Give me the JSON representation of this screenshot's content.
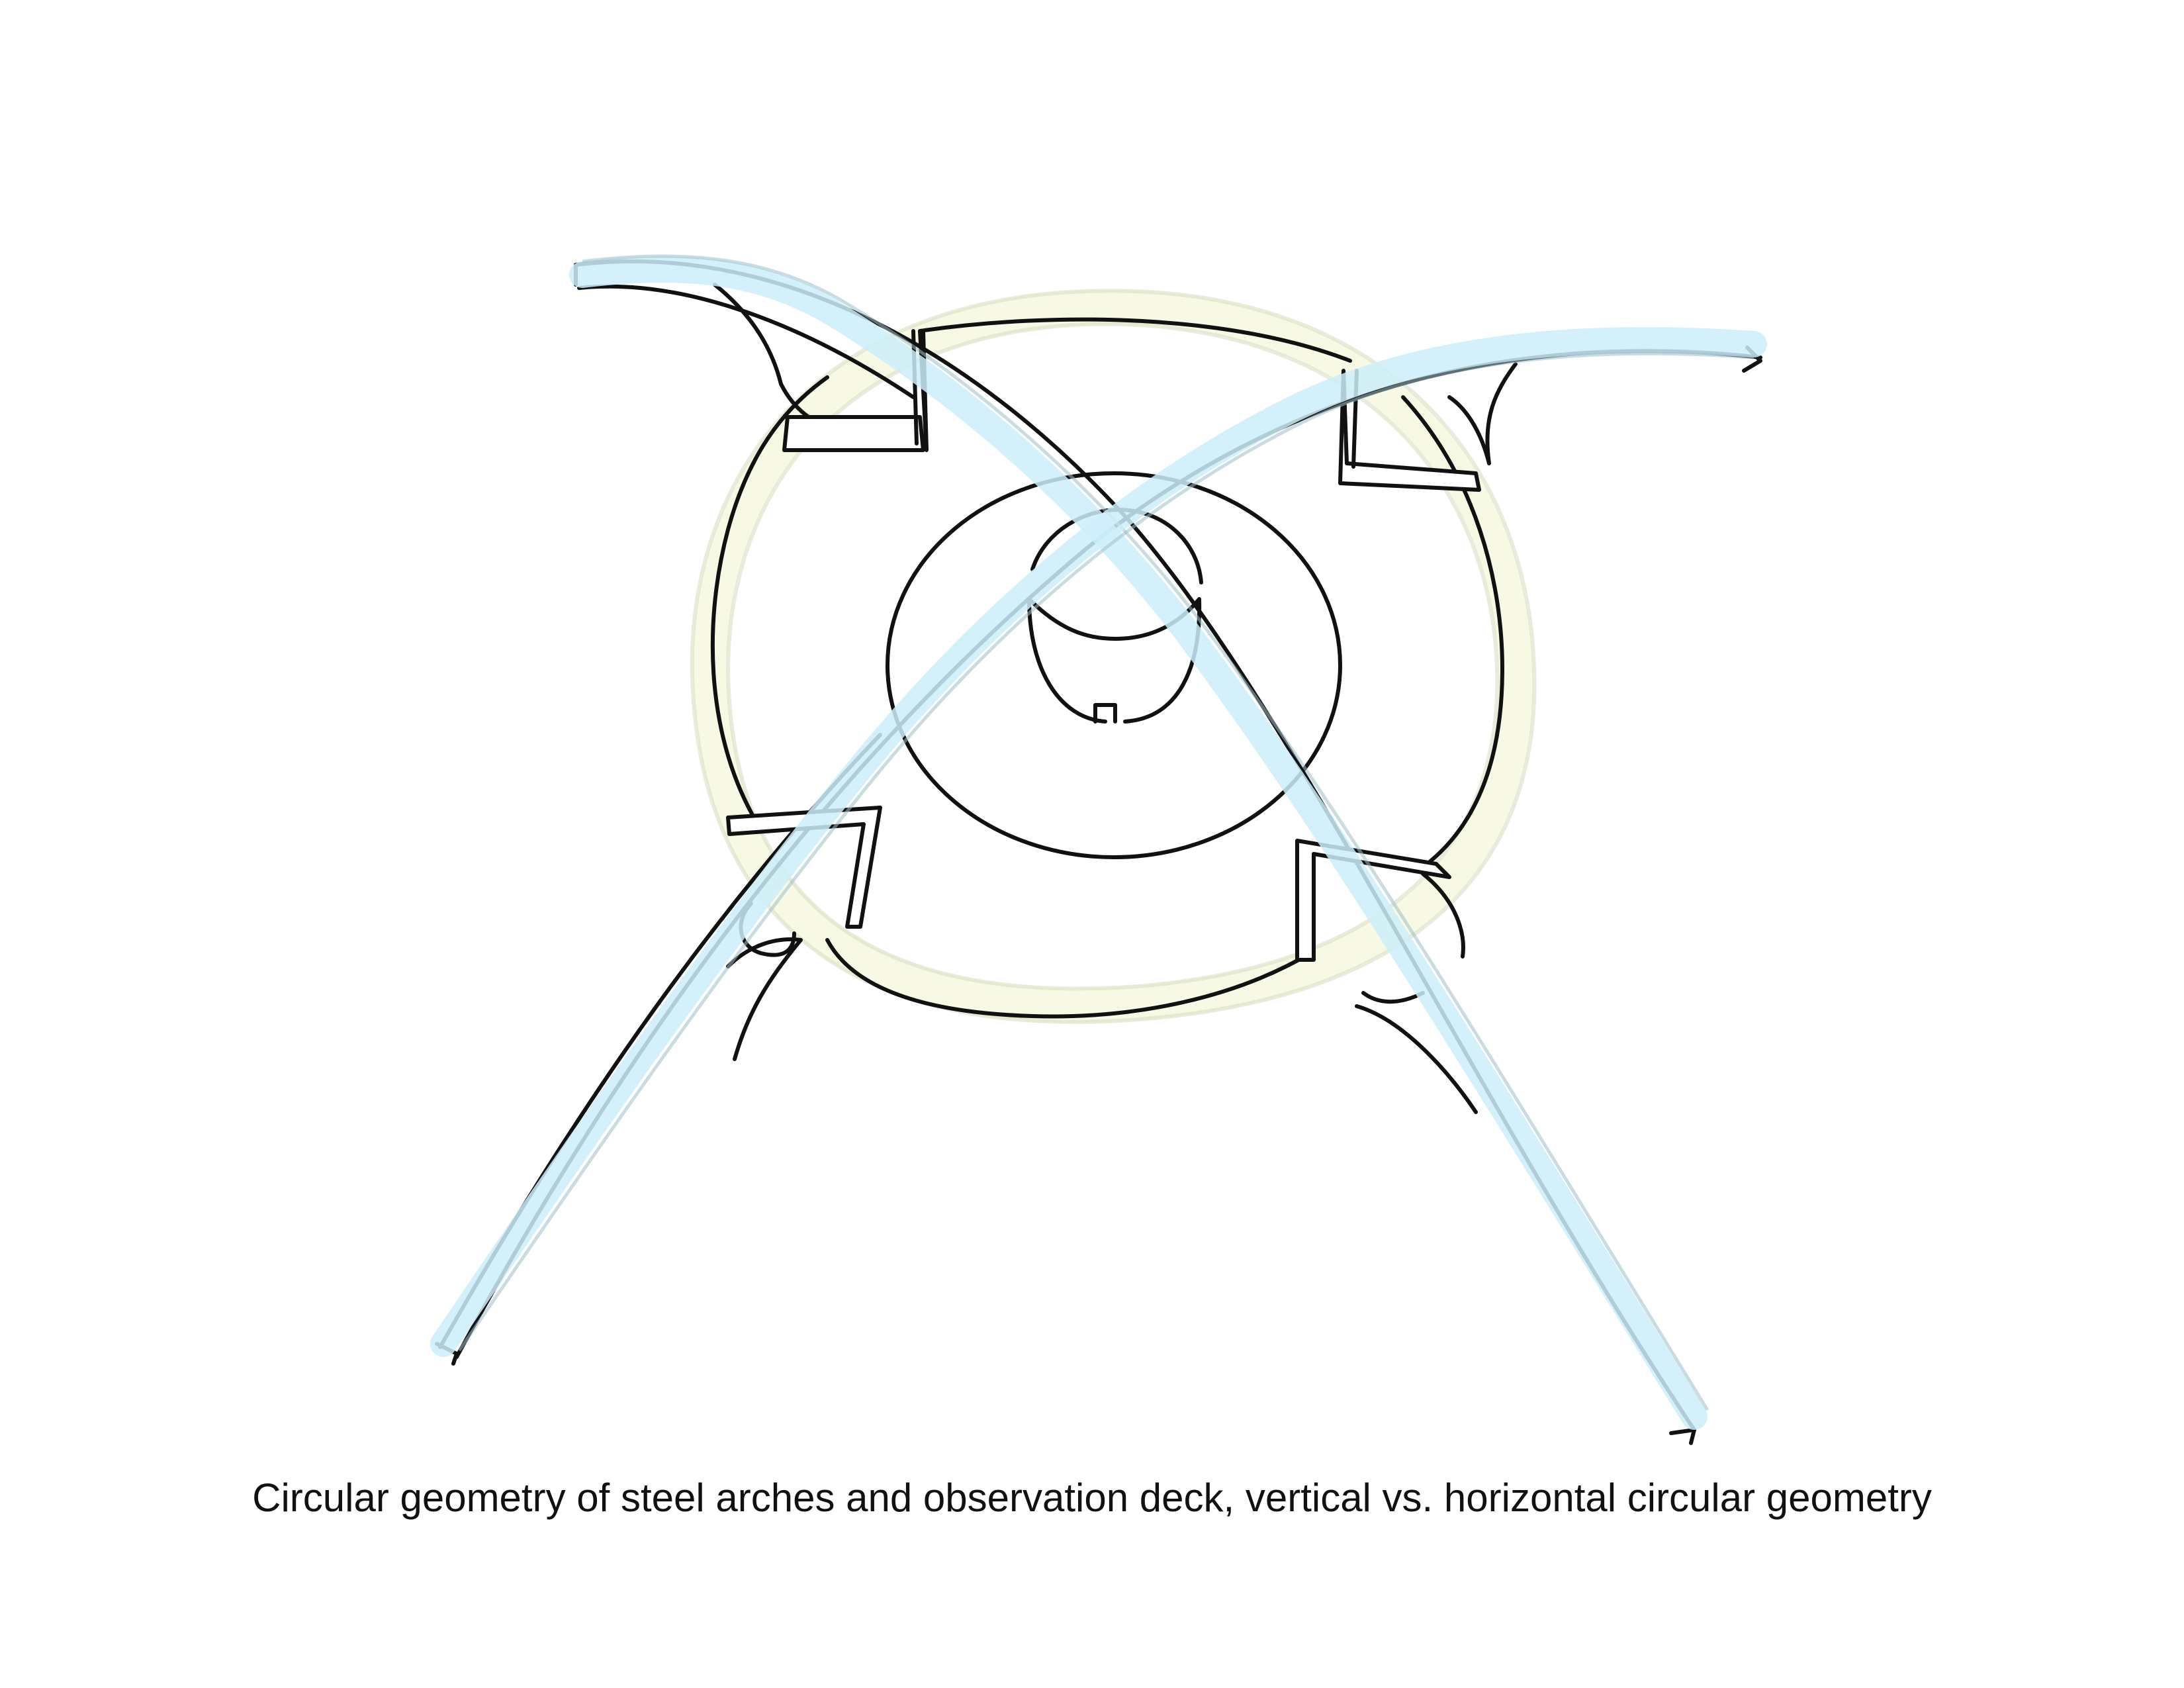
{
  "caption": "Circular geometry of steel arches and observation deck, vertical vs. horizontal circular geometry",
  "colors": {
    "arch_highlight": "#cdeefa",
    "arch_edge": "#9fbfca",
    "deck_highlight": "#f6f8df",
    "deck_edge": "#cfd4b2",
    "ink": "#111111",
    "background": "#ffffff"
  },
  "legend_semantics": {
    "arches": "vertical-circular-geometry",
    "deck": "horizontal-circular-geometry"
  }
}
